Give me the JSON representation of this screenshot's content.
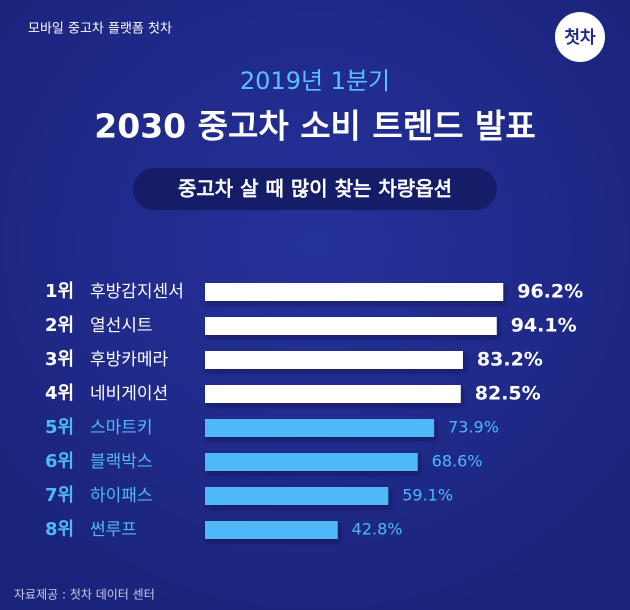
{
  "header": {
    "brand": "모바일 중고차 플랫폼 첫차",
    "logo": "첫차"
  },
  "chart_data": {
    "type": "bar",
    "orientation": "horizontal",
    "subtitle": "2019년 1분기",
    "title": "2030 중고차 소비 트렌드 발표",
    "caption": "중고차 살 때 많이 찾는 차량옵션",
    "ranks": [
      "1위",
      "2위",
      "3위",
      "4위",
      "5위",
      "6위",
      "7위",
      "8위"
    ],
    "categories": [
      "후방감지센서",
      "열선시트",
      "후방카메라",
      "네비게이션",
      "스마트키",
      "블랙박스",
      "하이패스",
      "썬루프"
    ],
    "values": [
      96.2,
      94.1,
      83.2,
      82.5,
      73.9,
      68.6,
      59.1,
      42.8
    ],
    "value_labels": [
      "96.2%",
      "94.1%",
      "83.2%",
      "82.5%",
      "73.9%",
      "68.6%",
      "59.1%",
      "42.8%"
    ],
    "colors": [
      "#ffffff",
      "#ffffff",
      "#ffffff",
      "#ffffff",
      "#4fb8f7",
      "#4fb8f7",
      "#4fb8f7",
      "#4fb8f7"
    ]
  },
  "footer": {
    "source": "자료제공 : 첫차 데이터 센터"
  }
}
